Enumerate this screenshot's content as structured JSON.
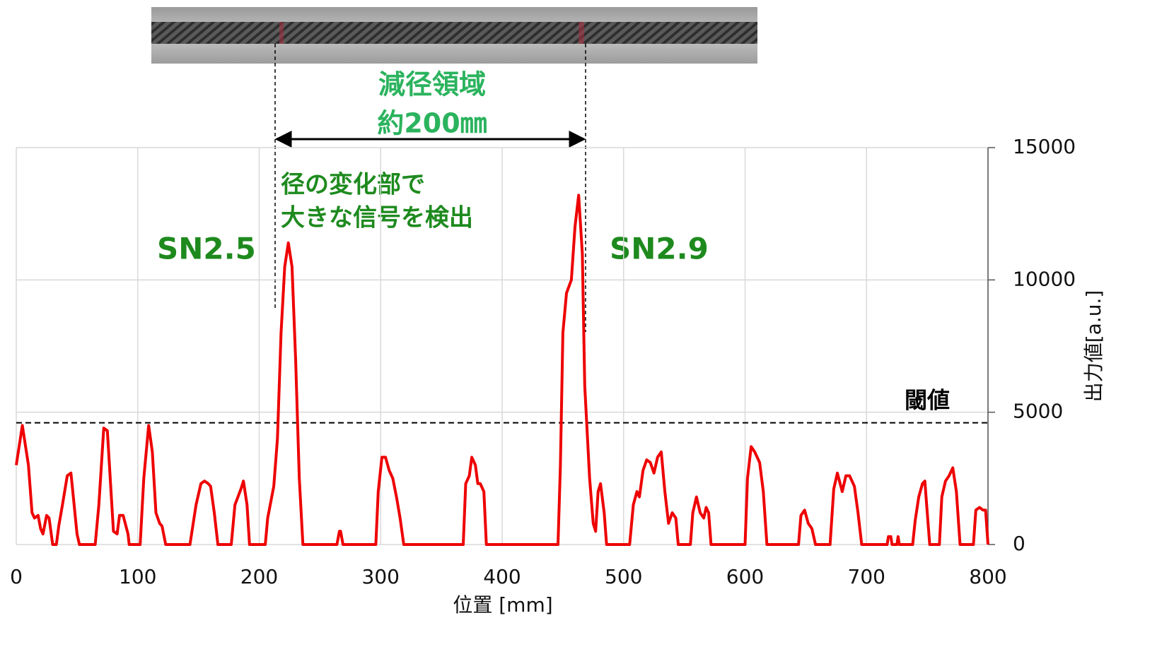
{
  "chart_data": {
    "type": "line",
    "x_label": "位置 [mm]",
    "y_label": "出力値[a.u.]",
    "color": "#ee0000",
    "xlim": [
      0,
      800
    ],
    "xticks": [
      0,
      100,
      200,
      300,
      400,
      500,
      600,
      700,
      800
    ],
    "ylim": [
      0,
      15000
    ],
    "yticks": [
      0,
      5000,
      10000,
      15000
    ],
    "grid": true,
    "threshold": {
      "value": 4600,
      "label": "閾値"
    },
    "annotations": {
      "region_title": "減径領域",
      "region_length": "約200㎜",
      "note_line1": "径の変化部で",
      "note_line2": "大きな信号を検出",
      "left_sn": "SN2.5",
      "right_sn": "SN2.9"
    },
    "x": [
      0,
      5,
      10,
      13,
      15,
      18,
      20,
      22,
      25,
      27,
      30,
      33,
      35,
      38,
      42,
      45,
      47,
      50,
      52,
      65,
      68,
      72,
      75,
      78,
      80,
      83,
      85,
      88,
      92,
      93,
      102,
      105,
      109,
      112,
      115,
      118,
      120,
      123,
      143,
      148,
      152,
      155,
      158,
      160,
      163,
      166,
      177,
      180,
      185,
      187,
      190,
      192,
      205,
      207,
      212,
      215,
      218,
      221,
      224,
      227,
      230,
      233,
      236,
      264,
      266,
      267,
      269,
      296,
      298,
      301,
      304,
      307,
      310,
      313,
      316,
      319,
      368,
      370,
      373,
      375,
      378,
      380,
      382,
      385,
      387,
      446,
      448,
      450,
      453,
      457,
      460,
      463,
      466,
      468,
      472,
      475,
      477,
      479,
      481,
      484,
      486,
      505,
      508,
      511,
      513,
      516,
      519,
      522,
      525,
      528,
      531,
      534,
      537,
      540,
      543,
      545,
      555,
      557,
      560,
      563,
      566,
      568,
      570,
      572,
      600,
      602,
      605,
      608,
      612,
      615,
      618,
      644,
      646,
      649,
      652,
      655,
      658,
      670,
      673,
      676,
      680,
      683,
      686,
      690,
      693,
      696,
      717,
      718,
      720,
      721,
      725,
      726,
      727,
      738,
      740,
      743,
      746,
      748,
      750,
      752,
      760,
      762,
      765,
      768,
      771,
      774,
      777,
      788,
      790,
      793,
      796,
      798,
      800
    ],
    "values": [
      3000,
      4500,
      3000,
      1200,
      1000,
      1100,
      600,
      400,
      1100,
      1000,
      0,
      0,
      700,
      1500,
      2600,
      2700,
      1800,
      400,
      0,
      0,
      1500,
      4400,
      4300,
      2000,
      500,
      400,
      1100,
      1100,
      400,
      0,
      0,
      2500,
      4500,
      3500,
      1200,
      800,
      700,
      0,
      0,
      1500,
      2300,
      2400,
      2300,
      2200,
      1200,
      0,
      0,
      1500,
      2100,
      2400,
      1500,
      0,
      0,
      1000,
      2200,
      4000,
      8000,
      10500,
      11400,
      10500,
      7000,
      2500,
      0,
      0,
      500,
      500,
      0,
      0,
      2000,
      3300,
      3300,
      2800,
      2500,
      1800,
      1000,
      0,
      0,
      2300,
      2600,
      3300,
      3000,
      2300,
      2300,
      2000,
      0,
      0,
      3000,
      8000,
      9500,
      10000,
      12000,
      13200,
      11000,
      6000,
      2500,
      800,
      500,
      2000,
      2300,
      1200,
      0,
      0,
      1500,
      2000,
      1800,
      2800,
      3200,
      3100,
      2700,
      3300,
      3500,
      2000,
      800,
      1200,
      1000,
      0,
      0,
      1200,
      1800,
      1200,
      1000,
      1400,
      1200,
      0,
      0,
      2500,
      3700,
      3500,
      3100,
      2000,
      0,
      0,
      1100,
      1300,
      800,
      600,
      0,
      0,
      2100,
      2700,
      2000,
      2600,
      2600,
      2200,
      1200,
      0,
      0,
      300,
      300,
      0,
      0,
      300,
      0,
      0,
      900,
      1800,
      2300,
      2400,
      1200,
      0,
      0,
      1800,
      2400,
      2600,
      2900,
      2000,
      0,
      0,
      1300,
      1400,
      1300,
      1300,
      0
    ]
  }
}
